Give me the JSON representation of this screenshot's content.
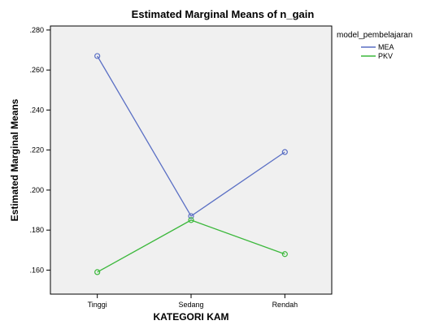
{
  "chart_data": {
    "type": "line",
    "title": "Estimated Marginal Means of n_gain",
    "xlabel": "KATEGORI KAM",
    "ylabel": "Estimated Marginal Means",
    "categories": [
      "Tinggi",
      "Sedang",
      "Rendah"
    ],
    "ylim": [
      0.148,
      0.282
    ],
    "yticks": [
      0.16,
      0.18,
      0.2,
      0.22,
      0.24,
      0.26,
      0.28
    ],
    "ytick_labels": [
      ".160",
      ".180",
      ".200",
      ".220",
      ".240",
      ".260",
      ".280"
    ],
    "legend": {
      "title": "model_pembelajaran",
      "placement": "right"
    },
    "grid": false,
    "series": [
      {
        "name": "MEA",
        "color": "#5a6fc4",
        "values": [
          0.267,
          0.187,
          0.219
        ]
      },
      {
        "name": "PKV",
        "color": "#3cb83c",
        "values": [
          0.159,
          0.185,
          0.168
        ]
      }
    ]
  },
  "colors": {
    "plot_background": "#f0f0f0",
    "axis": "#000000"
  }
}
